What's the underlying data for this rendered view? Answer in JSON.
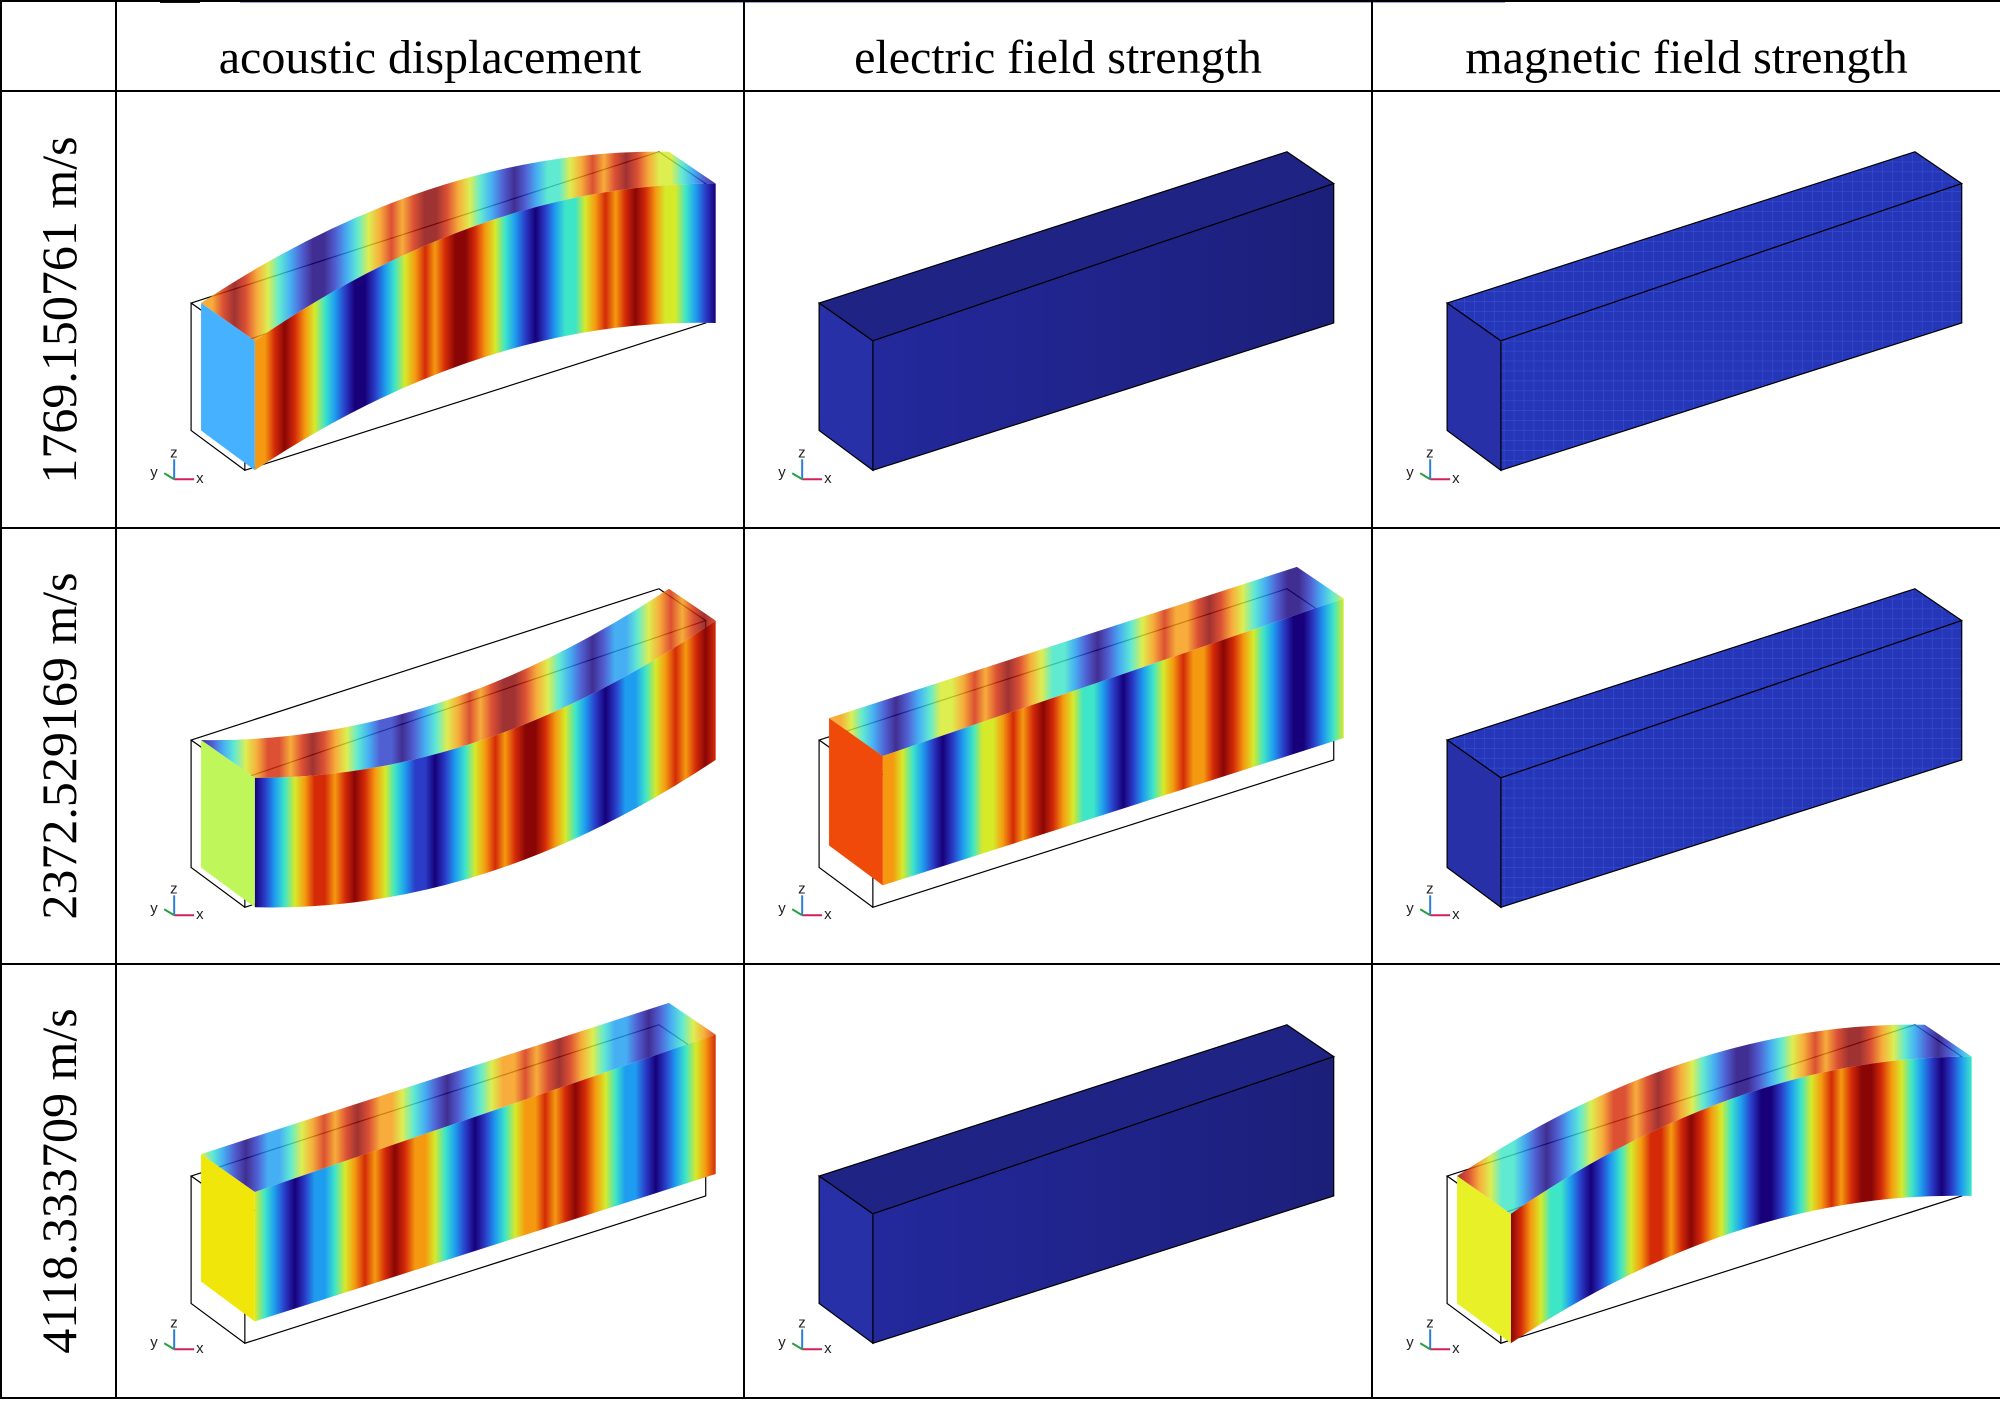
{
  "header": {
    "corner": "",
    "columns": [
      "acoustic displacement",
      "electric field strength",
      "magnetic field strength"
    ]
  },
  "rows": [
    {
      "label": "1769.150761 m/s",
      "cells": [
        {
          "field": "acoustic displacement",
          "shape": "bent-up",
          "end_color": "#46b2ff",
          "pattern": "wave",
          "phase": 0
        },
        {
          "field": "electric field strength",
          "shape": "straight",
          "pattern": "uniform-low"
        },
        {
          "field": "magnetic field strength",
          "shape": "straight",
          "pattern": "uniform-low-mesh"
        }
      ]
    },
    {
      "label": "2372.529169 m/s",
      "cells": [
        {
          "field": "acoustic displacement",
          "shape": "bent-down",
          "end_color": "#bff65a",
          "pattern": "wave",
          "phase": 0.6
        },
        {
          "field": "electric field strength",
          "shape": "straight-shifted",
          "end_color": "#f04a0a",
          "pattern": "wave",
          "phase": 0.25
        },
        {
          "field": "magnetic field strength",
          "shape": "straight",
          "pattern": "uniform-low-mesh"
        }
      ]
    },
    {
      "label": "4118.333709 m/s",
      "cells": [
        {
          "field": "acoustic displacement",
          "shape": "straight-shifted",
          "end_color": "#f0e60a",
          "pattern": "wave",
          "phase": 0.35
        },
        {
          "field": "electric field strength",
          "shape": "straight",
          "pattern": "uniform-low"
        },
        {
          "field": "magnetic field strength",
          "shape": "bent-up",
          "end_color": "#e8f028",
          "pattern": "wave",
          "phase": 0.15
        }
      ]
    }
  ],
  "axis_triad": {
    "y": "y",
    "z": "z",
    "x": "x"
  },
  "colormap": [
    "#17007a",
    "#2a3cc8",
    "#1e9cf0",
    "#3ee6c8",
    "#d6ea2a",
    "#f59a10",
    "#d42a08",
    "#8a0606"
  ]
}
